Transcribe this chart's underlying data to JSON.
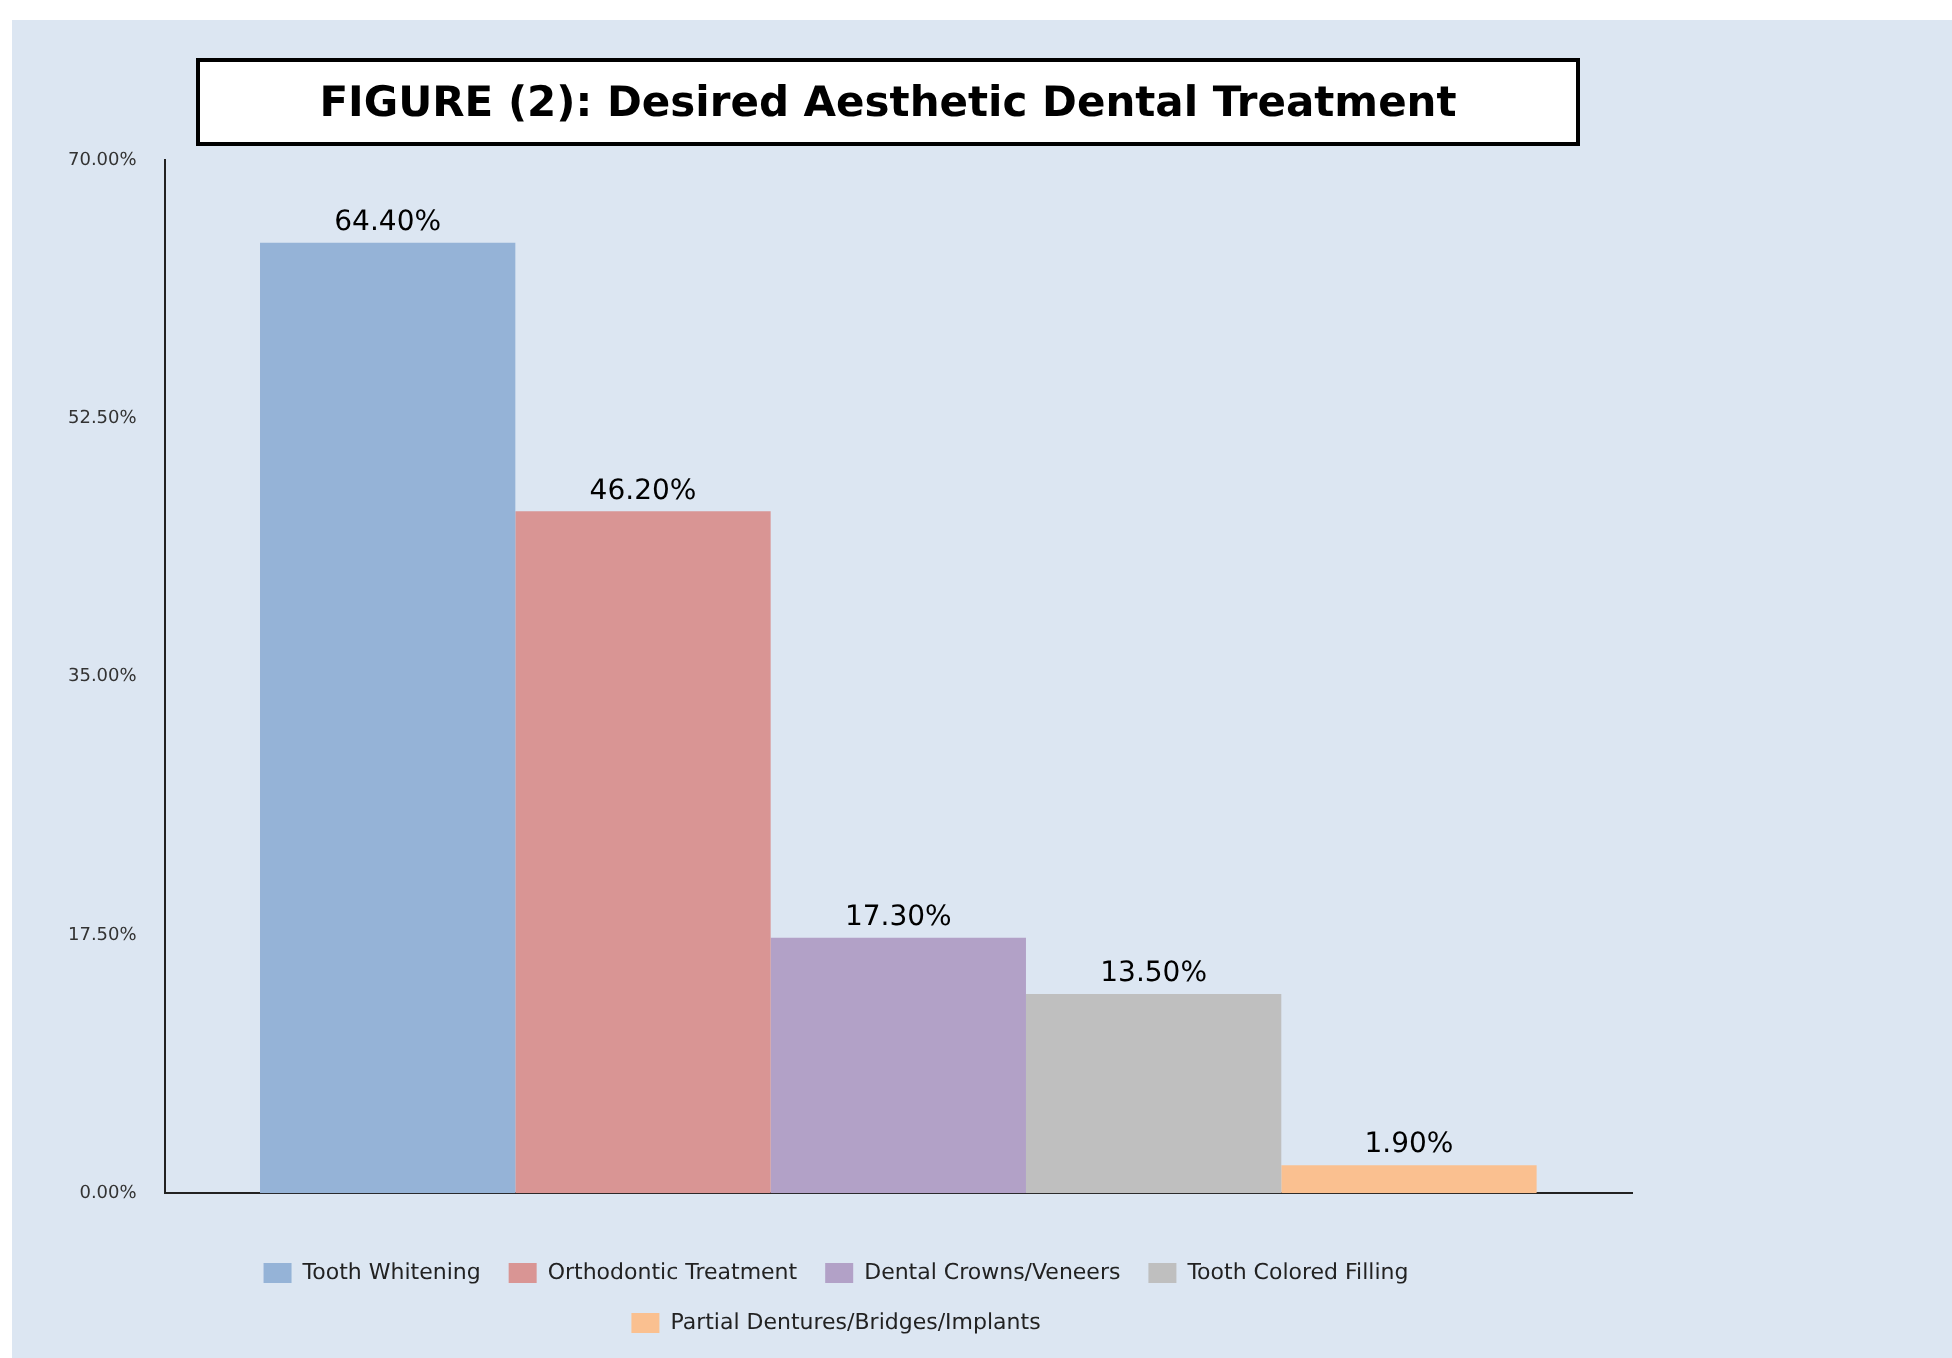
{
  "chart_data": {
    "type": "bar",
    "title": "FIGURE (2): Desired Aesthetic Dental Treatment",
    "categories": [
      null
    ],
    "series": [
      {
        "name": "Tooth Whitening",
        "color": "#95b3d7",
        "values": [
          64.4
        ],
        "value_labels": [
          "64.40%"
        ]
      },
      {
        "name": "Orthodontic Treatment",
        "color": "#d99594",
        "values": [
          46.2
        ],
        "value_labels": [
          "46.20%"
        ]
      },
      {
        "name": "Dental Crowns/Veneers",
        "color": "#b2a1c7",
        "values": [
          17.3
        ],
        "value_labels": [
          "17.30%"
        ]
      },
      {
        "name": "Tooth Colored Filling",
        "color": "#bfbfbf",
        "values": [
          13.5
        ],
        "value_labels": [
          "13.50%"
        ]
      },
      {
        "name": "Partial Dentures/Bridges/Implants",
        "color": "#fac090",
        "values": [
          1.9
        ],
        "value_labels": [
          "1.90%"
        ]
      }
    ],
    "ylim": [
      0,
      70
    ],
    "yticks": [
      {
        "value": 0,
        "label": "0.00%"
      },
      {
        "value": 17.5,
        "label": "17.50%"
      },
      {
        "value": 35,
        "label": "35.00%"
      },
      {
        "value": 52.5,
        "label": "52.50%"
      },
      {
        "value": 70,
        "label": "70.00%"
      }
    ],
    "grid": false,
    "legend": "bottom"
  }
}
